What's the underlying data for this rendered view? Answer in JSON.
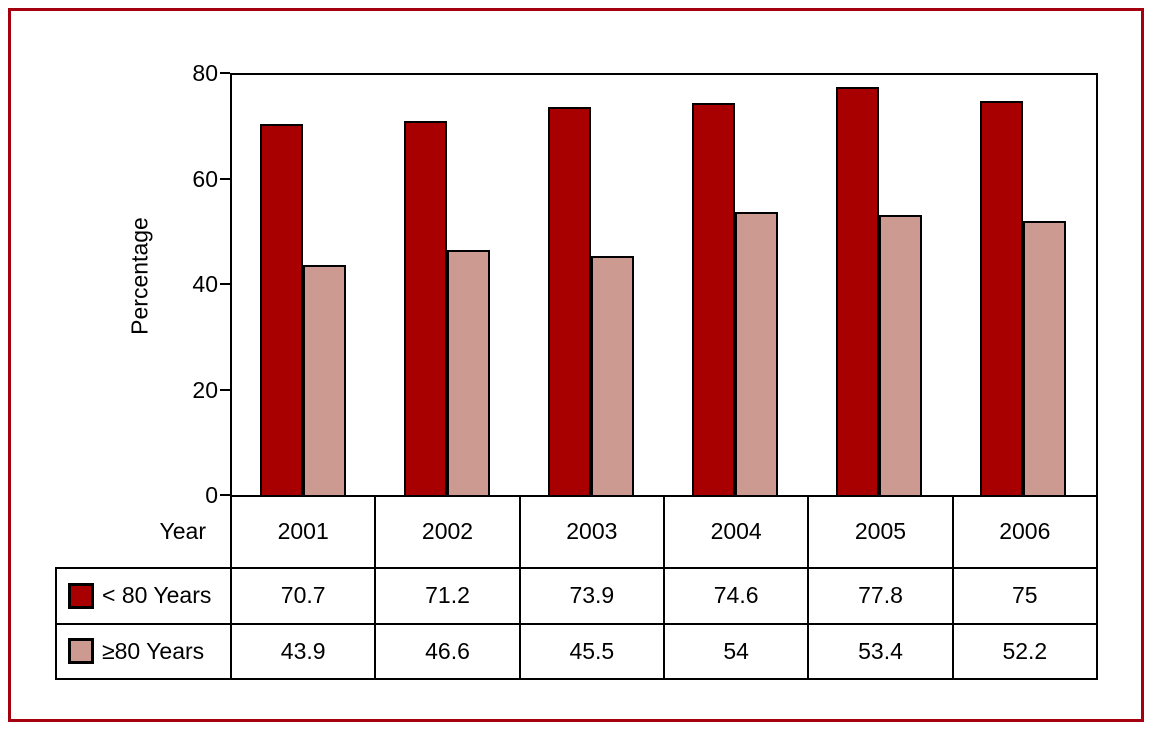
{
  "frame_color": "#A40010",
  "chart_data": {
    "type": "bar",
    "title": "",
    "ylabel": "Percentage",
    "xlabel": "Year",
    "ylim": [
      0,
      80
    ],
    "yticks": [
      0,
      20,
      40,
      60,
      80
    ],
    "grid": false,
    "legend_position": "table-below",
    "categories": [
      "2001",
      "2002",
      "2003",
      "2004",
      "2005",
      "2006"
    ],
    "series": [
      {
        "name": "< 80 Years",
        "color": "#A80000",
        "values": [
          70.7,
          71.2,
          73.9,
          74.6,
          77.8,
          75
        ]
      },
      {
        "name": "≥80 Years",
        "color": "#CC9A90",
        "values": [
          43.9,
          46.6,
          45.5,
          54,
          53.4,
          52.2
        ]
      }
    ]
  },
  "table": {
    "year_label": "Year",
    "years": [
      "2001",
      "2002",
      "2003",
      "2004",
      "2005",
      "2006"
    ],
    "rows": [
      {
        "label": "< 80 Years",
        "swatch_color": "#A80000",
        "values": [
          "70.7",
          "71.2",
          "73.9",
          "74.6",
          "77.8",
          "75"
        ]
      },
      {
        "label": "≥80 Years",
        "swatch_color": "#CC9A90",
        "values": [
          "43.9",
          "46.6",
          "45.5",
          "54",
          "53.4",
          "52.2"
        ]
      }
    ]
  }
}
